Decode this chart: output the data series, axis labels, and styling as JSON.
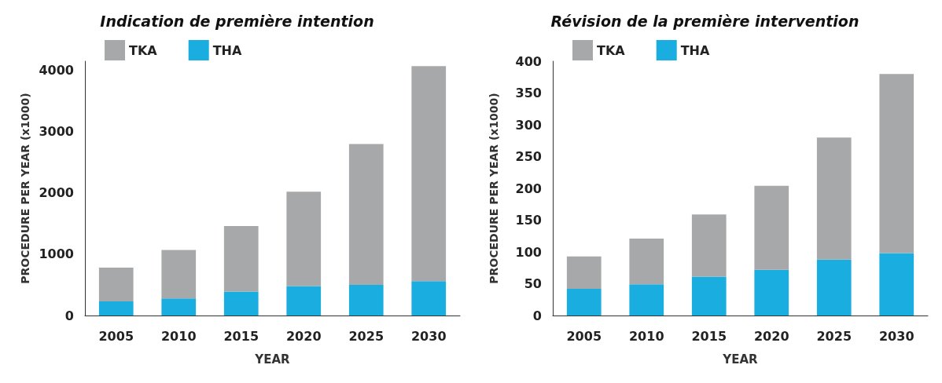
{
  "chart_data": [
    {
      "type": "bar",
      "title": "Indication de première intention",
      "xlabel": "YEAR",
      "ylabel": "PROCEDURE PER YEAR (x1000)",
      "categories": [
        "2005",
        "2010",
        "2015",
        "2020",
        "2025",
        "2030"
      ],
      "stacked": true,
      "ylim": [
        0,
        4150
      ],
      "yticks": [
        0,
        1000,
        2000,
        3000,
        4000
      ],
      "grid": false,
      "legend": "top left",
      "series": [
        {
          "name": "THA",
          "color": "#1aaee0",
          "values": [
            230,
            280,
            390,
            480,
            500,
            560
          ]
        },
        {
          "name": "TKA",
          "color": "#a7a8aa",
          "values": [
            550,
            790,
            1070,
            1540,
            2300,
            3510
          ]
        }
      ]
    },
    {
      "type": "bar",
      "title": "Révision de la première intervention",
      "xlabel": "YEAR",
      "ylabel": "PROCEDURE PER YEAR (x1000)",
      "categories": [
        "2005",
        "2010",
        "2015",
        "2020",
        "2025",
        "2030"
      ],
      "stacked": true,
      "ylim": [
        0,
        400
      ],
      "yticks": [
        0,
        50,
        100,
        150,
        200,
        250,
        300,
        350,
        400
      ],
      "grid": false,
      "legend": "top left",
      "series": [
        {
          "name": "THA",
          "color": "#1aaee0",
          "values": [
            42,
            49,
            61,
            72,
            88,
            98
          ]
        },
        {
          "name": "TKA",
          "color": "#a7a8aa",
          "values": [
            51,
            72,
            98,
            132,
            192,
            282
          ]
        }
      ]
    }
  ]
}
